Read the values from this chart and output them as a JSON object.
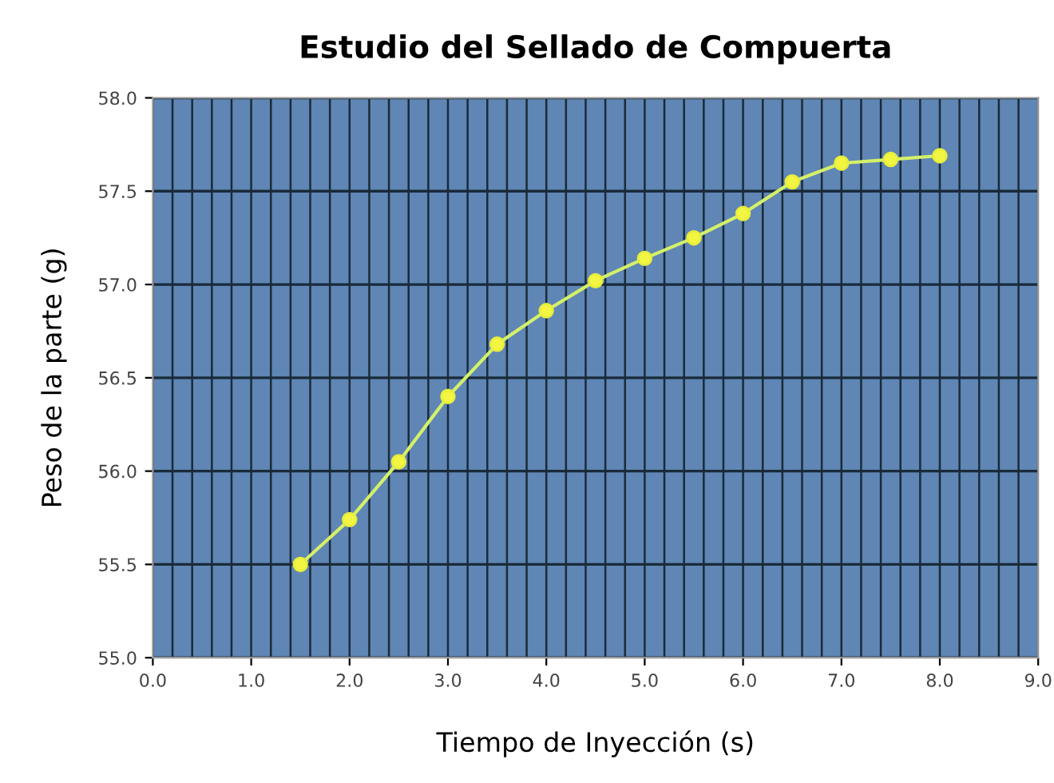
{
  "chart_data": {
    "type": "line",
    "title": "Estudio del Sellado de Compuerta",
    "xlabel": "Tiempo de Inyección (s)",
    "ylabel": "Peso de la parte (g)",
    "x": [
      1.5,
      2.0,
      2.5,
      3.0,
      3.5,
      4.0,
      4.5,
      5.0,
      5.5,
      6.0,
      6.5,
      7.0,
      7.5,
      8.0
    ],
    "series": [
      {
        "color": "#d4f06a",
        "values": [
          55.5,
          55.74,
          56.05,
          56.4,
          56.68,
          56.86,
          57.02,
          57.14,
          57.25,
          57.38,
          57.55,
          57.65,
          57.67,
          57.69
        ]
      }
    ],
    "xlim": [
      0,
      9
    ],
    "xticks": [
      {
        "value": 0,
        "label": "0.0"
      },
      {
        "value": 1,
        "label": "1.0"
      },
      {
        "value": 2,
        "label": "2.0"
      },
      {
        "value": 3,
        "label": "3.0"
      },
      {
        "value": 4,
        "label": "4.0"
      },
      {
        "value": 5,
        "label": "5.0"
      },
      {
        "value": 6,
        "label": "6.0"
      },
      {
        "value": 7,
        "label": "7.0"
      },
      {
        "value": 8,
        "label": "8.0"
      },
      {
        "value": 9,
        "label": "9.0"
      }
    ],
    "ylim": [
      55,
      58
    ],
    "yticks": [
      {
        "value": 55,
        "label": "55.0"
      },
      {
        "value": 55.5,
        "label": "55.5"
      },
      {
        "value": 56,
        "label": "56.0"
      },
      {
        "value": 56.5,
        "label": "56.5"
      },
      {
        "value": 57,
        "label": "57.0"
      },
      {
        "value": 57.5,
        "label": "57.5"
      },
      {
        "value": 58,
        "label": "58.0"
      }
    ],
    "grid": true,
    "marker": "circle",
    "line_style": "solid",
    "legend": false
  }
}
